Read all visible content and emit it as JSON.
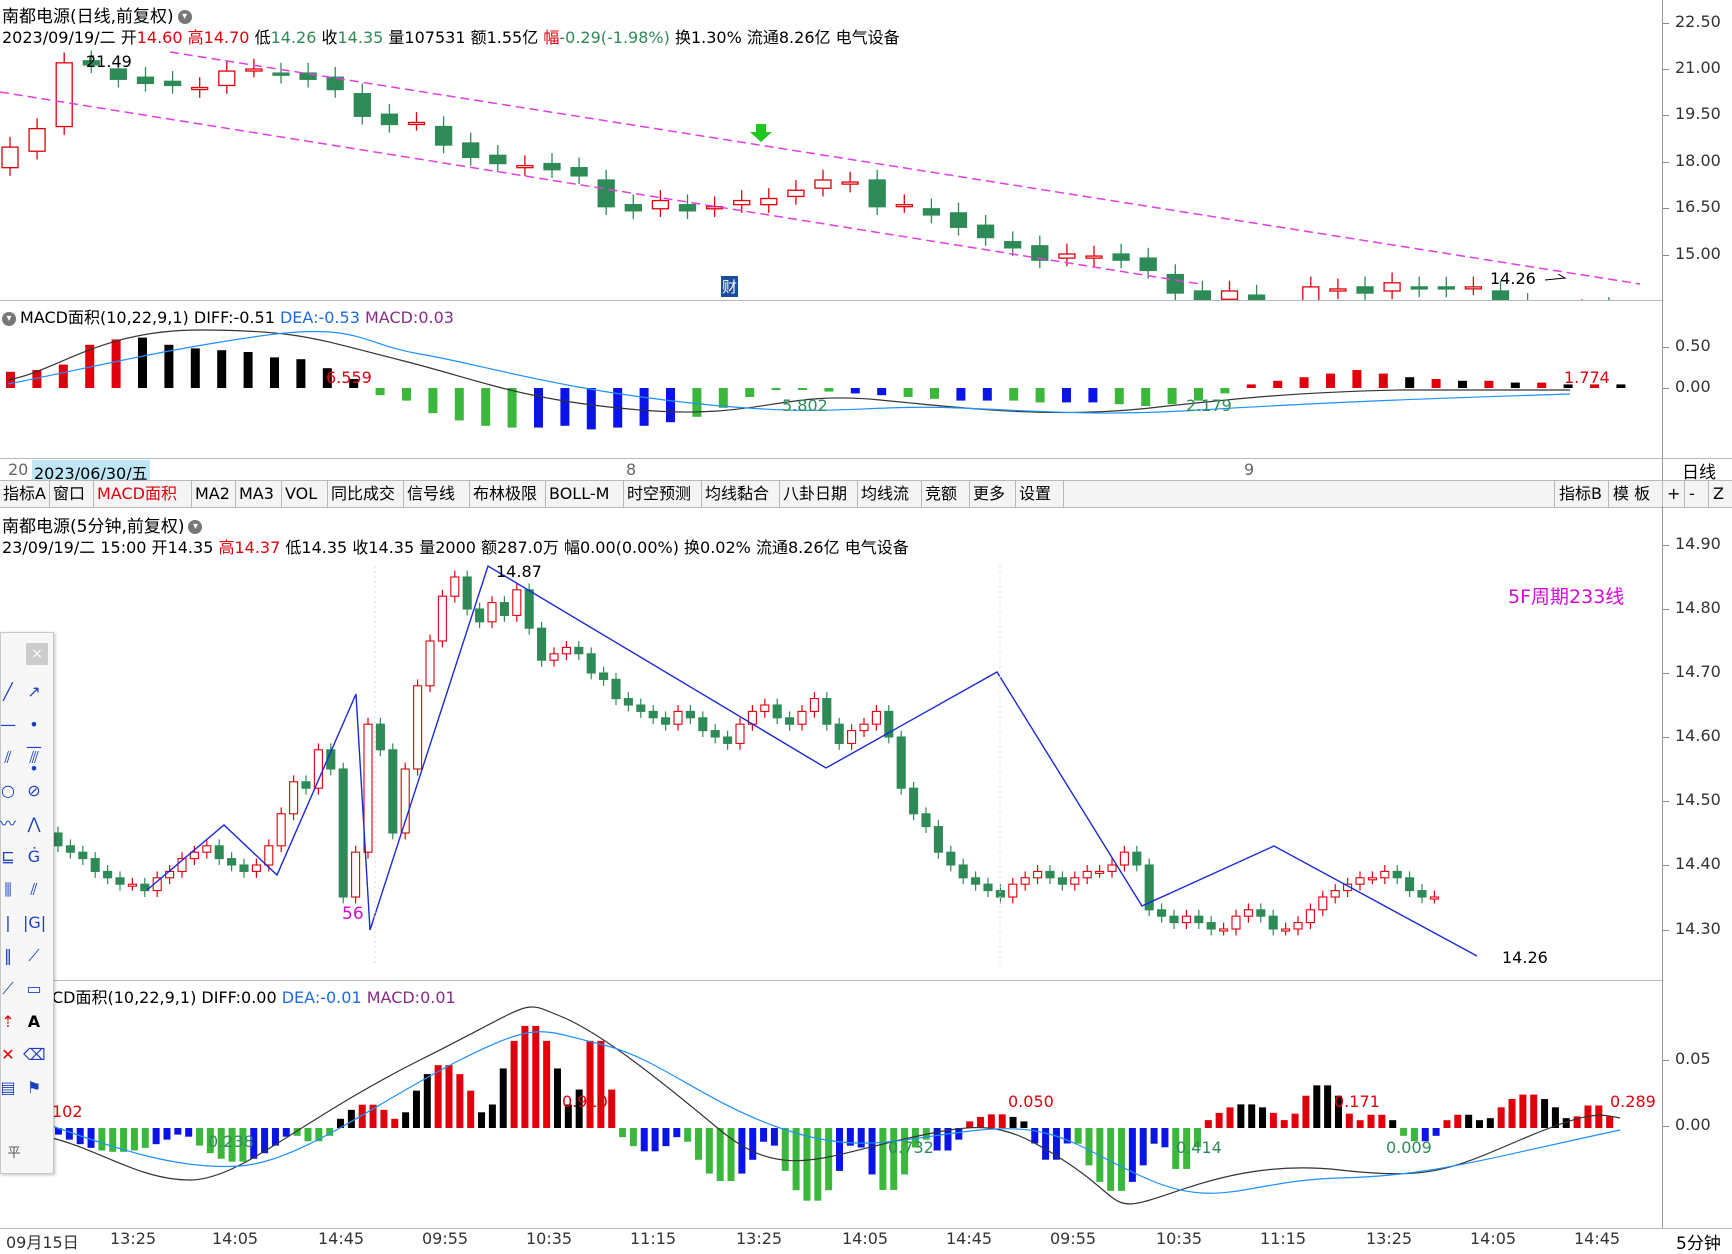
{
  "daily": {
    "title": "南都电源(日线,前复权)",
    "info": {
      "date": "2023/09/19/二",
      "open_label": "开",
      "open": "14.60",
      "high_label": "高",
      "high": "14.70",
      "low_label": "低",
      "low": "14.26",
      "close_label": "收",
      "close": "14.35",
      "vol_label": "量",
      "vol": "107531",
      "amt_label": "额",
      "amt": "1.55亿",
      "chg_label": "幅",
      "chg": "-0.29(-1.98%)",
      "turnover": "换1.30%",
      "float": "流通8.26亿",
      "industry": "电气设备"
    },
    "yaxis": [
      "22.50",
      "21.00",
      "19.50",
      "18.00",
      "16.50",
      "15.00"
    ],
    "labels": {
      "high_mark": "21.49",
      "low_mark": "14.26",
      "cai": "财"
    }
  },
  "daily_macd": {
    "title": "MACD面积(10,22,9,1)",
    "diff_label": "DIFF:",
    "diff": "-0.51",
    "dea_label": "DEA:",
    "dea": "-0.53",
    "macd_label": "MACD:",
    "macd": "0.03",
    "yaxis": [
      "0.50",
      "0.00"
    ],
    "area_labels": [
      "6.559",
      "5.802",
      "2.179",
      "1.774"
    ]
  },
  "daily_xaxis": {
    "prefix": "20",
    "highlight": "2023/06/30/五",
    "ticks": [
      "8",
      "9"
    ],
    "period": "日线"
  },
  "tabs": [
    "指标A",
    "窗口",
    "MACD面积",
    "MA2",
    "MA3",
    "VOL",
    "同比成交",
    "信号线",
    "布林极限",
    "BOLL-M",
    "时空预测",
    "均线黏合",
    "八卦日期",
    "均线流",
    "竞额",
    "更多",
    "设置"
  ],
  "active_tab": "MACD面积",
  "right_tabs": [
    "指标B",
    "模 板",
    "+",
    "-",
    "Z"
  ],
  "intraday": {
    "title": "南都电源(5分钟,前复权)",
    "info": {
      "date": "23/09/19/二 15:00",
      "open_label": "开",
      "open": "14.35",
      "high_label": "高",
      "high": "14.37",
      "low_label": "低",
      "low": "14.35",
      "close_label": "收",
      "close": "14.35",
      "vol_label": "量",
      "vol": "2000",
      "amt_label": "额",
      "amt": "287.0万",
      "chg_label": "幅",
      "chg": "0.00(0.00%)",
      "turnover": "换0.02%",
      "float": "流通8.26亿",
      "industry": "电气设备"
    },
    "yaxis": [
      "14.90",
      "14.80",
      "14.70",
      "14.60",
      "14.50",
      "14.40",
      "14.30"
    ],
    "labels": {
      "high_mark": "14.87",
      "low_mark": "14.26",
      "count": "56",
      "cycle": "5F周期233线"
    }
  },
  "intraday_macd": {
    "title_partial": "CD面积(10,22,9,1)",
    "diff_label": "DIFF:",
    "diff": "0.00",
    "dea_label": "DEA:",
    "dea": "-0.01",
    "macd_label": "MACD:",
    "macd": "0.01",
    "yaxis": [
      "0.05",
      "0.00"
    ],
    "area_labels": [
      "102",
      "0.238",
      "0.910",
      "0.732",
      "0.050",
      "0.414",
      "0.171",
      "0.009",
      "0.289"
    ]
  },
  "intraday_xaxis": {
    "ticks": [
      "09月15日",
      "13:25",
      "14:05",
      "14:45",
      "09:55",
      "10:35",
      "11:15",
      "13:25",
      "14:05",
      "14:45",
      "09:55",
      "10:35",
      "11:15",
      "13:25",
      "14:05",
      "14:45"
    ],
    "period": "5分钟"
  },
  "colors": {
    "up": "#e0000b",
    "down": "#2e8b57",
    "macd_neg2": "#0a14e6",
    "macd_pos2": "#000000",
    "channel": "#e23fe2",
    "wave": "#1a2bd6",
    "dea": "#1e90ff"
  },
  "tools": [
    "line-icon",
    "ray-icon",
    "segment-icon",
    "parallel-icon",
    "circle-icon",
    "wave-icon",
    "fib-icon",
    "gann-icon",
    "channel-icon",
    "polyline-icon",
    "rect-icon",
    "text-icon",
    "arrow-icon",
    "eraser-icon",
    "calc-icon",
    "flag-icon",
    "pin-icon"
  ],
  "tool_labels": {
    "text": "A",
    "close": "×",
    "bottom": "平"
  }
}
